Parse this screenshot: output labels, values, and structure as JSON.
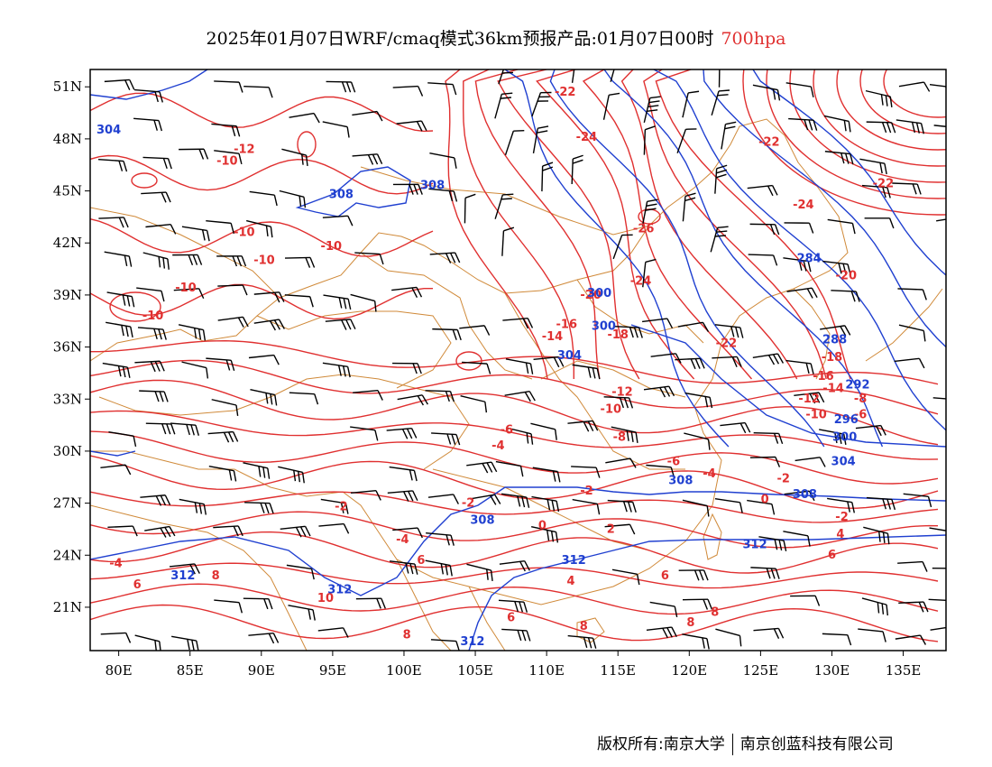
{
  "title": {
    "main": "2025年01月07日WRF/cmaq模式36km预报产品:01月07日00时",
    "level": "700hpa"
  },
  "footer": {
    "left": "版权所有:南京大学",
    "right": "南京创蓝科技有限公司"
  },
  "axes": {
    "x_ticks": [
      "80E",
      "85E",
      "90E",
      "95E",
      "100E",
      "105E",
      "110E",
      "115E",
      "120E",
      "125E",
      "130E",
      "135E"
    ],
    "y_ticks": [
      "51N",
      "48N",
      "45N",
      "42N",
      "39N",
      "36N",
      "33N",
      "30N",
      "27N",
      "24N",
      "21N"
    ],
    "lon_range": [
      78,
      138
    ],
    "lat_range": [
      18.5,
      52
    ]
  },
  "colors": {
    "temperature": "#e03030",
    "height": "#2040d0",
    "border": "#d08a3a",
    "wind": "#000000"
  },
  "temperature_labels": [
    {
      "text": "-22",
      "lon": 111.3,
      "lat": 50.5
    },
    {
      "text": "-24",
      "lon": 112.8,
      "lat": 47.9
    },
    {
      "text": "-12",
      "lon": 88.8,
      "lat": 47.2
    },
    {
      "text": "-10",
      "lon": 87.6,
      "lat": 46.5
    },
    {
      "text": "-22",
      "lon": 125.6,
      "lat": 47.6
    },
    {
      "text": "-22",
      "lon": 133.6,
      "lat": 45.2
    },
    {
      "text": "-24",
      "lon": 128.0,
      "lat": 44.0
    },
    {
      "text": "-26",
      "lon": 116.8,
      "lat": 42.6
    },
    {
      "text": "-10",
      "lon": 88.8,
      "lat": 42.4
    },
    {
      "text": "-10",
      "lon": 94.9,
      "lat": 41.6
    },
    {
      "text": "-10",
      "lon": 90.2,
      "lat": 40.8
    },
    {
      "text": "-10",
      "lon": 84.7,
      "lat": 39.2
    },
    {
      "text": "-10",
      "lon": 82.4,
      "lat": 37.6
    },
    {
      "text": "-20",
      "lon": 113.1,
      "lat": 38.8
    },
    {
      "text": "-24",
      "lon": 116.6,
      "lat": 39.6
    },
    {
      "text": "-20",
      "lon": 131.0,
      "lat": 39.9
    },
    {
      "text": "-16",
      "lon": 111.4,
      "lat": 37.1
    },
    {
      "text": "-14",
      "lon": 110.4,
      "lat": 36.4
    },
    {
      "text": "-18",
      "lon": 115.0,
      "lat": 36.5
    },
    {
      "text": "-22",
      "lon": 122.6,
      "lat": 36.0
    },
    {
      "text": "-18",
      "lon": 130.0,
      "lat": 35.2
    },
    {
      "text": "-16",
      "lon": 129.4,
      "lat": 34.1
    },
    {
      "text": "-14",
      "lon": 130.1,
      "lat": 33.4
    },
    {
      "text": "-12",
      "lon": 128.4,
      "lat": 32.8
    },
    {
      "text": "-8",
      "lon": 132.0,
      "lat": 32.8
    },
    {
      "text": "-12",
      "lon": 115.3,
      "lat": 33.2
    },
    {
      "text": "-10",
      "lon": 114.5,
      "lat": 32.2
    },
    {
      "text": "-10",
      "lon": 128.9,
      "lat": 31.9
    },
    {
      "text": "-6",
      "lon": 132.0,
      "lat": 31.9
    },
    {
      "text": "-8",
      "lon": 115.1,
      "lat": 30.6
    },
    {
      "text": "-6",
      "lon": 107.2,
      "lat": 31.0
    },
    {
      "text": "-4",
      "lon": 106.6,
      "lat": 30.1
    },
    {
      "text": "-6",
      "lon": 118.9,
      "lat": 29.2
    },
    {
      "text": "-4",
      "lon": 121.4,
      "lat": 28.5
    },
    {
      "text": "-2",
      "lon": 126.6,
      "lat": 28.2
    },
    {
      "text": "-2",
      "lon": 112.8,
      "lat": 27.5
    },
    {
      "text": "0",
      "lon": 125.3,
      "lat": 27.0
    },
    {
      "text": "-2",
      "lon": 95.6,
      "lat": 26.6
    },
    {
      "text": "-2",
      "lon": 104.5,
      "lat": 26.8
    },
    {
      "text": "-2",
      "lon": 130.7,
      "lat": 26.0
    },
    {
      "text": "0",
      "lon": 109.7,
      "lat": 25.5
    },
    {
      "text": "2",
      "lon": 114.5,
      "lat": 25.3
    },
    {
      "text": "4",
      "lon": 130.6,
      "lat": 25.0
    },
    {
      "text": "-4",
      "lon": 99.9,
      "lat": 24.7
    },
    {
      "text": "6",
      "lon": 101.2,
      "lat": 23.5
    },
    {
      "text": "6",
      "lon": 130.0,
      "lat": 23.8
    },
    {
      "text": "-4",
      "lon": 79.8,
      "lat": 23.3
    },
    {
      "text": "6",
      "lon": 81.3,
      "lat": 22.1
    },
    {
      "text": "8",
      "lon": 86.8,
      "lat": 22.6
    },
    {
      "text": "10",
      "lon": 94.5,
      "lat": 21.3
    },
    {
      "text": "4",
      "lon": 111.7,
      "lat": 22.3
    },
    {
      "text": "6",
      "lon": 118.3,
      "lat": 22.6
    },
    {
      "text": "6",
      "lon": 107.5,
      "lat": 20.2
    },
    {
      "text": "8",
      "lon": 121.8,
      "lat": 20.5
    },
    {
      "text": "8",
      "lon": 112.6,
      "lat": 19.7
    },
    {
      "text": "8",
      "lon": 120.1,
      "lat": 19.9
    },
    {
      "text": "8",
      "lon": 100.2,
      "lat": 19.2
    }
  ],
  "height_labels": [
    {
      "text": "304",
      "lon": 79.3,
      "lat": 48.3
    },
    {
      "text": "308",
      "lon": 95.6,
      "lat": 44.6
    },
    {
      "text": "308",
      "lon": 102.0,
      "lat": 45.1
    },
    {
      "text": "284",
      "lon": 128.4,
      "lat": 40.9
    },
    {
      "text": "300",
      "lon": 113.7,
      "lat": 38.9
    },
    {
      "text": "300",
      "lon": 114.0,
      "lat": 37.0
    },
    {
      "text": "304",
      "lon": 111.6,
      "lat": 35.3
    },
    {
      "text": "288",
      "lon": 130.2,
      "lat": 36.2
    },
    {
      "text": "292",
      "lon": 131.8,
      "lat": 33.6
    },
    {
      "text": "296",
      "lon": 131.0,
      "lat": 31.6
    },
    {
      "text": "300",
      "lon": 130.9,
      "lat": 30.6
    },
    {
      "text": "304",
      "lon": 130.8,
      "lat": 29.2
    },
    {
      "text": "308",
      "lon": 119.4,
      "lat": 28.1
    },
    {
      "text": "308",
      "lon": 128.1,
      "lat": 27.3
    },
    {
      "text": "308",
      "lon": 105.5,
      "lat": 25.8
    },
    {
      "text": "312",
      "lon": 124.6,
      "lat": 24.4
    },
    {
      "text": "312",
      "lon": 111.9,
      "lat": 23.5
    },
    {
      "text": "312",
      "lon": 84.5,
      "lat": 22.6
    },
    {
      "text": "312",
      "lon": 95.5,
      "lat": 21.8
    },
    {
      "text": "312",
      "lon": 104.8,
      "lat": 18.8
    }
  ]
}
